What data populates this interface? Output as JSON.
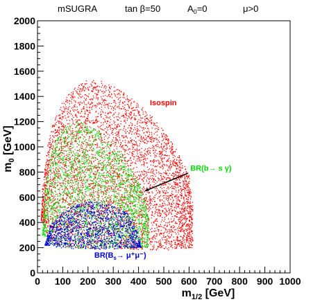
{
  "chart_data": {
    "type": "scatter",
    "header": {
      "model": "mSUGRA",
      "tanb": "tan β=50",
      "a0": "A",
      "a0_sub": "0",
      "a0_val": "=0",
      "mu": "μ>0"
    },
    "xlabel": "m",
    "xlabel_sub": "1/2",
    "xlabel_unit": " [GeV]",
    "ylabel": "m",
    "ylabel_sub": "0",
    "ylabel_unit": " [GeV]",
    "xlim": [
      0,
      1000
    ],
    "ylim": [
      0,
      2000
    ],
    "xticks": [
      0,
      100,
      200,
      300,
      400,
      500,
      600,
      700,
      800,
      900,
      1000
    ],
    "yticks": [
      0,
      200,
      400,
      600,
      800,
      1000,
      1200,
      1400,
      1600,
      1800,
      2000
    ],
    "colors": {
      "isospin": "#ff0000",
      "bsg": "#00dd00",
      "bsmumu": "#0000dd",
      "frame": "#000000"
    },
    "series": [
      {
        "name": "Isospin",
        "color": "#ff0000",
        "region": {
          "upper": [
            [
              15,
              420
            ],
            [
              20,
              680
            ],
            [
              40,
              1000
            ],
            [
              60,
              1200
            ],
            [
              100,
              1360
            ],
            [
              150,
              1480
            ],
            [
              200,
              1530
            ],
            [
              250,
              1525
            ],
            [
              300,
              1480
            ],
            [
              350,
              1420
            ],
            [
              400,
              1340
            ],
            [
              450,
              1250
            ],
            [
              500,
              1130
            ],
            [
              550,
              980
            ],
            [
              600,
              780
            ],
            [
              615,
              550
            ],
            [
              620,
              300
            ],
            [
              615,
              200
            ]
          ],
          "lower": [
            [
              15,
              420
            ],
            [
              50,
              250
            ],
            [
              100,
              200
            ],
            [
              300,
              190
            ],
            [
              500,
              180
            ],
            [
              615,
              200
            ]
          ]
        }
      },
      {
        "name": "BR(b→ s γ)",
        "color": "#00dd00",
        "region": {
          "upper": [
            [
              20,
              300
            ],
            [
              30,
              700
            ],
            [
              60,
              1000
            ],
            [
              100,
              1150
            ],
            [
              150,
              1200
            ],
            [
              200,
              1180
            ],
            [
              250,
              1120
            ],
            [
              300,
              1040
            ],
            [
              350,
              900
            ],
            [
              400,
              720
            ],
            [
              430,
              550
            ],
            [
              445,
              350
            ],
            [
              440,
              200
            ]
          ],
          "lower": [
            [
              20,
              300
            ],
            [
              60,
              210
            ],
            [
              200,
              190
            ],
            [
              440,
              200
            ]
          ]
        }
      },
      {
        "name": "BR(B→ μ⁺μ⁻)",
        "color": "#0000dd",
        "region": {
          "upper": [
            [
              30,
              220
            ],
            [
              50,
              380
            ],
            [
              100,
              480
            ],
            [
              150,
              540
            ],
            [
              200,
              570
            ],
            [
              250,
              565
            ],
            [
              300,
              540
            ],
            [
              350,
              480
            ],
            [
              380,
              420
            ],
            [
              400,
              300
            ],
            [
              410,
              200
            ]
          ],
          "lower": [
            [
              30,
              220
            ],
            [
              100,
              195
            ],
            [
              250,
              185
            ],
            [
              410,
              200
            ]
          ]
        }
      }
    ],
    "annotations": [
      {
        "text": "Isospin",
        "x": 445,
        "y": 1330
      },
      {
        "text": "BR(b→ s γ)",
        "x": 605,
        "y": 810
      },
      {
        "text": "BR(B",
        "sub": "s",
        "rest": "→ μ⁺μ⁻)",
        "x": 225,
        "y": 120
      }
    ],
    "arrow": {
      "from": [
        595,
        790
      ],
      "to": [
        425,
        650
      ]
    },
    "grid": false,
    "legend": "none"
  }
}
